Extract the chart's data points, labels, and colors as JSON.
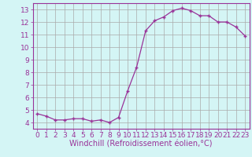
{
  "x": [
    0,
    1,
    2,
    3,
    4,
    5,
    6,
    7,
    8,
    9,
    10,
    11,
    12,
    13,
    14,
    15,
    16,
    17,
    18,
    19,
    20,
    21,
    22,
    23
  ],
  "y": [
    4.7,
    4.5,
    4.2,
    4.2,
    4.3,
    4.3,
    4.1,
    4.2,
    4.0,
    4.4,
    6.5,
    8.4,
    11.3,
    12.1,
    12.4,
    12.9,
    13.1,
    12.9,
    12.5,
    12.5,
    12.0,
    12.0,
    11.6,
    10.9
  ],
  "line_color": "#993399",
  "marker": "+",
  "background_color": "#d4f5f5",
  "grid_color": "#aaaaaa",
  "xlabel": "Windchill (Refroidissement éolien,°C)",
  "xlabel_fontsize": 7.0,
  "ylim": [
    3.5,
    13.5
  ],
  "xlim": [
    -0.5,
    23.5
  ],
  "tick_fontsize": 6.5,
  "xtick_labels": [
    "0",
    "1",
    "2",
    "3",
    "4",
    "5",
    "6",
    "7",
    "8",
    "9",
    "10",
    "11",
    "12",
    "13",
    "14",
    "15",
    "16",
    "17",
    "18",
    "19",
    "20",
    "21",
    "22",
    "23"
  ],
  "ytick_values": [
    4,
    5,
    6,
    7,
    8,
    9,
    10,
    11,
    12,
    13
  ]
}
